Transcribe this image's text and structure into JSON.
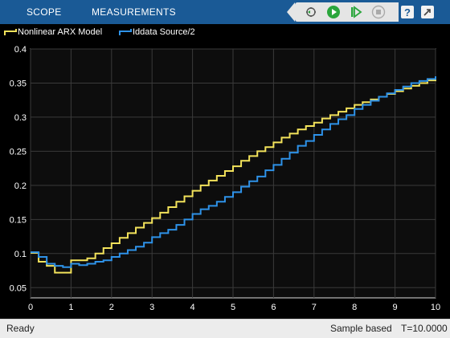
{
  "toolbar": {
    "tabs": [
      {
        "label": "SCOPE"
      },
      {
        "label": "MEASUREMENTS"
      }
    ],
    "icons": [
      "step-back-icon",
      "run-icon",
      "step-forward-icon",
      "stop-icon",
      "help-icon",
      "undock-icon"
    ],
    "background": "#1a5a96"
  },
  "legend": {
    "entries": [
      {
        "label": "Nonlinear ARX Model",
        "color": "#f3e35b"
      },
      {
        "label": "Iddata Source/2",
        "color": "#2e92e8"
      }
    ]
  },
  "chart_data": {
    "type": "line",
    "style": "stairs",
    "background": "#0d0d0d",
    "grid": true,
    "xlim": [
      0,
      10
    ],
    "ylim": [
      0.035,
      0.4
    ],
    "xticks": [
      "0",
      "1",
      "2",
      "3",
      "4",
      "5",
      "6",
      "7",
      "8",
      "9",
      "10"
    ],
    "yticks": [
      "0.05",
      "0.1",
      "0.15",
      "0.2",
      "0.25",
      "0.3",
      "0.35",
      "0.4"
    ],
    "x": [
      0,
      0.2,
      0.4,
      0.6,
      0.8,
      1.0,
      1.2,
      1.4,
      1.6,
      1.8,
      2.0,
      2.2,
      2.4,
      2.6,
      2.8,
      3.0,
      3.2,
      3.4,
      3.6,
      3.8,
      4.0,
      4.2,
      4.4,
      4.6,
      4.8,
      5.0,
      5.2,
      5.4,
      5.6,
      5.8,
      6.0,
      6.2,
      6.4,
      6.6,
      6.8,
      7.0,
      7.2,
      7.4,
      7.6,
      7.8,
      8.0,
      8.2,
      8.4,
      8.6,
      8.8,
      9.0,
      9.2,
      9.4,
      9.6,
      9.8,
      10.0
    ],
    "series": [
      {
        "name": "Nonlinear ARX Model",
        "color": "#f3e35b",
        "values": [
          0.101,
          0.088,
          0.082,
          0.072,
          0.072,
          0.09,
          0.09,
          0.093,
          0.1,
          0.108,
          0.115,
          0.123,
          0.13,
          0.138,
          0.145,
          0.152,
          0.16,
          0.168,
          0.176,
          0.184,
          0.192,
          0.2,
          0.207,
          0.214,
          0.221,
          0.228,
          0.236,
          0.243,
          0.25,
          0.256,
          0.263,
          0.27,
          0.276,
          0.282,
          0.287,
          0.292,
          0.298,
          0.303,
          0.308,
          0.313,
          0.318,
          0.322,
          0.326,
          0.33,
          0.334,
          0.338,
          0.342,
          0.346,
          0.35,
          0.354,
          0.358
        ]
      },
      {
        "name": "Iddata Source/2",
        "color": "#2e92e8",
        "values": [
          0.102,
          0.095,
          0.085,
          0.082,
          0.08,
          0.085,
          0.083,
          0.085,
          0.088,
          0.09,
          0.095,
          0.1,
          0.105,
          0.11,
          0.116,
          0.124,
          0.13,
          0.135,
          0.142,
          0.15,
          0.158,
          0.165,
          0.17,
          0.176,
          0.183,
          0.19,
          0.198,
          0.206,
          0.213,
          0.222,
          0.23,
          0.239,
          0.248,
          0.258,
          0.265,
          0.274,
          0.282,
          0.29,
          0.297,
          0.303,
          0.312,
          0.318,
          0.324,
          0.33,
          0.335,
          0.34,
          0.345,
          0.35,
          0.353,
          0.356,
          0.36
        ]
      }
    ]
  },
  "status": {
    "left": "Ready",
    "mode": "Sample based",
    "time": "T=10.0000"
  }
}
